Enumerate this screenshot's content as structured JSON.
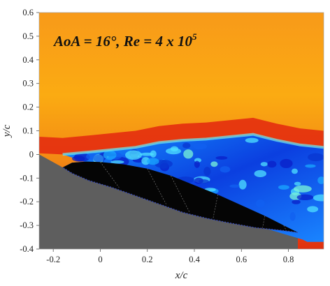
{
  "chart_data": {
    "type": "heatmap",
    "title": "",
    "annotation": {
      "main": "AoA = 16°, Re = 4 x 10",
      "superscript": "5"
    },
    "xlabel": "x/c",
    "ylabel": "y/c",
    "xlim": [
      -0.26,
      0.95
    ],
    "ylim": [
      -0.4,
      0.6
    ],
    "xticks": [
      {
        "value": -0.2,
        "label": "-0.2"
      },
      {
        "value": 0,
        "label": "0"
      },
      {
        "value": 0.2,
        "label": "0.2"
      },
      {
        "value": 0.4,
        "label": "0.4"
      },
      {
        "value": 0.6,
        "label": "0.6"
      },
      {
        "value": 0.8,
        "label": "0.8"
      }
    ],
    "yticks": [
      {
        "value": -0.4,
        "label": "-0.4"
      },
      {
        "value": -0.3,
        "label": "-0.3"
      },
      {
        "value": -0.2,
        "label": "-0.2"
      },
      {
        "value": -0.1,
        "label": "-0.1"
      },
      {
        "value": 0,
        "label": "0"
      },
      {
        "value": 0.1,
        "label": "0.1"
      },
      {
        "value": 0.2,
        "label": "0.2"
      },
      {
        "value": 0.3,
        "label": "0.3"
      },
      {
        "value": 0.4,
        "label": "0.4"
      },
      {
        "value": 0.5,
        "label": "0.5"
      },
      {
        "value": 0.6,
        "label": "0.6"
      }
    ],
    "colors": {
      "freestream": "#f7a11a",
      "upper": "#fdb813",
      "accel": "#e8210f",
      "wake_low": "#0a2bd8",
      "wake_mid": "#1aa7ff",
      "wake_edge": "#6ff0e8",
      "shadow": "#5f5f5f",
      "airfoil": "#050505"
    },
    "airfoil_upper": [
      [
        -0.16,
        -0.055
      ],
      [
        -0.12,
        -0.035
      ],
      [
        -0.06,
        -0.03
      ],
      [
        0.0,
        -0.032
      ],
      [
        0.1,
        -0.042
      ],
      [
        0.2,
        -0.06
      ],
      [
        0.3,
        -0.09
      ],
      [
        0.4,
        -0.13
      ],
      [
        0.5,
        -0.17
      ],
      [
        0.6,
        -0.215
      ],
      [
        0.7,
        -0.26
      ],
      [
        0.78,
        -0.3
      ],
      [
        0.84,
        -0.33
      ]
    ],
    "airfoil_lower": [
      [
        0.84,
        -0.33
      ],
      [
        0.76,
        -0.32
      ],
      [
        0.66,
        -0.31
      ],
      [
        0.55,
        -0.29
      ],
      [
        0.45,
        -0.27
      ],
      [
        0.35,
        -0.245
      ],
      [
        0.25,
        -0.21
      ],
      [
        0.15,
        -0.175
      ],
      [
        0.05,
        -0.14
      ],
      [
        -0.05,
        -0.11
      ],
      [
        -0.12,
        -0.08
      ],
      [
        -0.16,
        -0.055
      ]
    ],
    "separation_boundary": [
      [
        -0.26,
        0.005
      ],
      [
        -0.16,
        0.0
      ],
      [
        -0.05,
        0.01
      ],
      [
        0.05,
        0.02
      ],
      [
        0.15,
        0.03
      ],
      [
        0.25,
        0.05
      ],
      [
        0.35,
        0.06
      ],
      [
        0.45,
        0.065
      ],
      [
        0.55,
        0.075
      ],
      [
        0.65,
        0.085
      ],
      [
        0.75,
        0.06
      ],
      [
        0.85,
        0.04
      ],
      [
        0.95,
        0.03
      ]
    ],
    "wake_lower_boundary": [
      [
        0.84,
        -0.33
      ],
      [
        0.86,
        -0.36
      ],
      [
        0.88,
        -0.37
      ],
      [
        0.95,
        -0.37
      ]
    ]
  }
}
